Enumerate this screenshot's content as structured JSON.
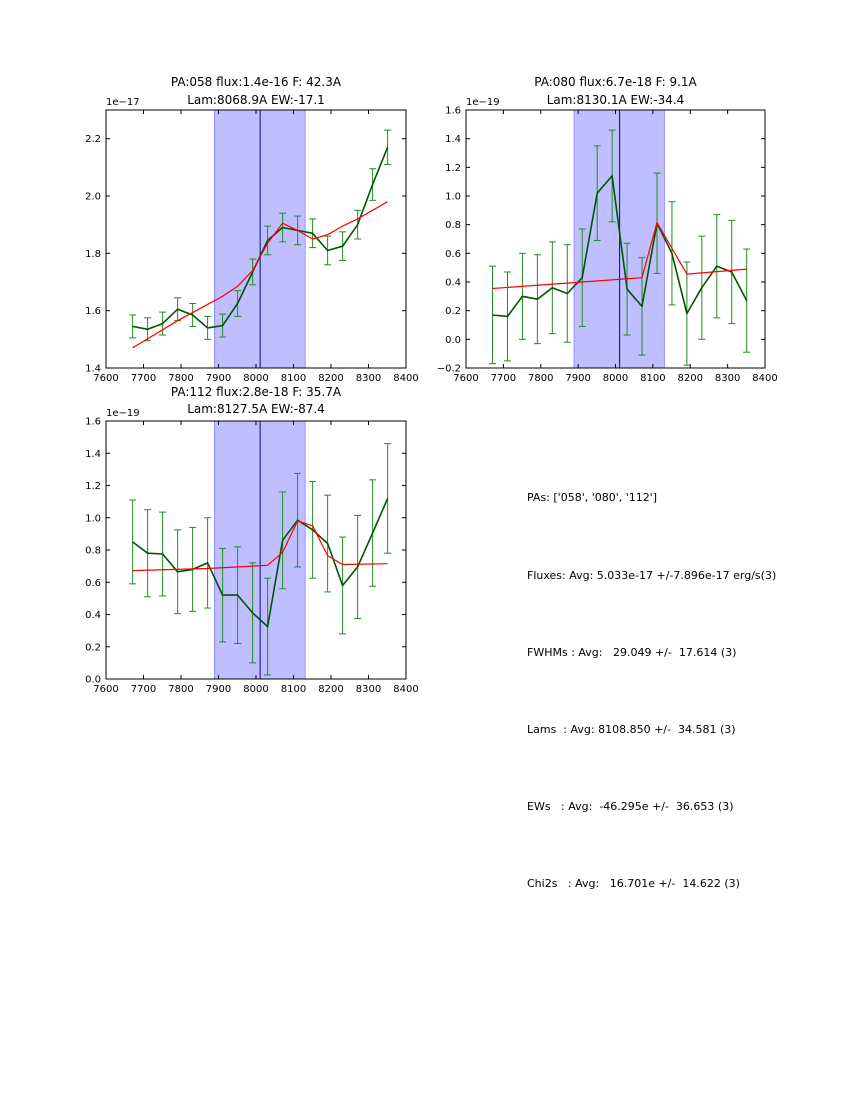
{
  "chart_data": [
    {
      "type": "line",
      "title_line1": "PA:058 flux:1.4e-16 F: 42.3A",
      "title_line2": "Lam:8068.9A EW:-17.1",
      "exponent_label": "1e−17",
      "xlim": [
        7600,
        8400
      ],
      "ylim": [
        1.4,
        2.3
      ],
      "xticks": [
        7600,
        7700,
        7800,
        7900,
        8000,
        8100,
        8200,
        8300,
        8400
      ],
      "yticks": [
        1.4,
        1.6,
        1.8,
        2.0,
        2.2
      ],
      "ytick_labels": [
        "1.4",
        "1.6",
        "1.8",
        "2.0",
        "2.2"
      ],
      "band": [
        7889,
        8131
      ],
      "center_line": 8011,
      "series": [
        {
          "name": "data",
          "color": "#005500",
          "x": [
            7671,
            7711,
            7751,
            7791,
            7831,
            7871,
            7911,
            7951,
            7991,
            8031,
            8071,
            8111,
            8151,
            8191,
            8231,
            8271,
            8311,
            8351
          ],
          "y": [
            1.545,
            1.535,
            1.555,
            1.605,
            1.585,
            1.54,
            1.548,
            1.625,
            1.735,
            1.845,
            1.89,
            1.88,
            1.87,
            1.81,
            1.825,
            1.9,
            2.04,
            2.17
          ],
          "err": [
            0.04,
            0.04,
            0.04,
            0.04,
            0.04,
            0.04,
            0.04,
            0.045,
            0.045,
            0.05,
            0.05,
            0.05,
            0.05,
            0.05,
            0.05,
            0.05,
            0.055,
            0.06
          ]
        },
        {
          "name": "model",
          "color": "#ff0000",
          "x": [
            7671,
            7791,
            7911,
            7951,
            7991,
            8031,
            8071,
            8111,
            8151,
            8191,
            8231,
            8271,
            8311,
            8351
          ],
          "y": [
            1.47,
            1.565,
            1.65,
            1.685,
            1.74,
            1.835,
            1.905,
            1.88,
            1.85,
            1.865,
            1.895,
            1.92,
            1.95,
            1.98
          ]
        }
      ]
    },
    {
      "type": "line",
      "title_line1": "PA:080 flux:6.7e-18 F: 9.1A",
      "title_line2": "Lam:8130.1A EW:-34.4",
      "exponent_label": "1e−19",
      "xlim": [
        7600,
        8400
      ],
      "ylim": [
        -0.2,
        1.6
      ],
      "xticks": [
        7600,
        7700,
        7800,
        7900,
        8000,
        8100,
        8200,
        8300,
        8400
      ],
      "yticks": [
        -0.2,
        0.0,
        0.2,
        0.4,
        0.6,
        0.8,
        1.0,
        1.2,
        1.4,
        1.6
      ],
      "ytick_labels": [
        "−0.2",
        "0.0",
        "0.2",
        "0.4",
        "0.6",
        "0.8",
        "1.0",
        "1.2",
        "1.4",
        "1.6"
      ],
      "band": [
        7889,
        8131
      ],
      "center_line": 8011,
      "series": [
        {
          "name": "data",
          "color": "#005500",
          "x": [
            7671,
            7711,
            7751,
            7791,
            7831,
            7871,
            7911,
            7951,
            7991,
            8031,
            8071,
            8111,
            8151,
            8191,
            8231,
            8271,
            8311,
            8351
          ],
          "y": [
            0.17,
            0.16,
            0.3,
            0.28,
            0.36,
            0.32,
            0.43,
            1.02,
            1.14,
            0.35,
            0.23,
            0.81,
            0.6,
            0.18,
            0.36,
            0.51,
            0.47,
            0.27
          ],
          "err": [
            0.34,
            0.31,
            0.3,
            0.31,
            0.32,
            0.34,
            0.34,
            0.33,
            0.32,
            0.32,
            0.34,
            0.35,
            0.36,
            0.36,
            0.36,
            0.36,
            0.36,
            0.36
          ]
        },
        {
          "name": "model",
          "color": "#ff0000",
          "x": [
            7671,
            8071,
            8111,
            8191,
            8351
          ],
          "y": [
            0.355,
            0.43,
            0.815,
            0.455,
            0.49
          ]
        }
      ]
    },
    {
      "type": "line",
      "title_line1": "PA:112 flux:2.8e-18 F: 35.7A",
      "title_line2": "Lam:8127.5A EW:-87.4",
      "exponent_label": "1e−19",
      "xlim": [
        7600,
        8400
      ],
      "ylim": [
        0.0,
        1.6
      ],
      "xticks": [
        7600,
        7700,
        7800,
        7900,
        8000,
        8100,
        8200,
        8300,
        8400
      ],
      "yticks": [
        0.0,
        0.2,
        0.4,
        0.6,
        0.8,
        1.0,
        1.2,
        1.4,
        1.6
      ],
      "ytick_labels": [
        "0.0",
        "0.2",
        "0.4",
        "0.6",
        "0.8",
        "1.0",
        "1.2",
        "1.4",
        "1.6"
      ],
      "band": [
        7889,
        8131
      ],
      "center_line": 8011,
      "series": [
        {
          "name": "data",
          "color": "#005500",
          "x": [
            7671,
            7711,
            7751,
            7791,
            7831,
            7871,
            7911,
            7951,
            7991,
            8031,
            8071,
            8111,
            8151,
            8191,
            8231,
            8271,
            8311,
            8351
          ],
          "y": [
            0.85,
            0.78,
            0.775,
            0.665,
            0.68,
            0.72,
            0.52,
            0.52,
            0.41,
            0.325,
            0.86,
            0.985,
            0.925,
            0.84,
            0.58,
            0.695,
            0.905,
            1.12
          ],
          "err": [
            0.26,
            0.27,
            0.26,
            0.26,
            0.26,
            0.28,
            0.29,
            0.3,
            0.31,
            0.3,
            0.3,
            0.29,
            0.3,
            0.3,
            0.3,
            0.32,
            0.33,
            0.34
          ]
        },
        {
          "name": "model",
          "color": "#ff0000",
          "x": [
            7671,
            7871,
            8031,
            8071,
            8111,
            8151,
            8191,
            8231,
            8351
          ],
          "y": [
            0.672,
            0.685,
            0.705,
            0.785,
            0.98,
            0.95,
            0.765,
            0.71,
            0.715
          ]
        }
      ]
    }
  ],
  "summary": {
    "pas": "PAs: ['058', '080', '112']",
    "fluxes": "Fluxes: Avg: 5.033e-17 +/-7.896e-17 erg/s(3)",
    "fwhms": "FWHMs : Avg:   29.049 +/-  17.614 (3)",
    "lams": "Lams  : Avg: 8108.850 +/-  34.581 (3)",
    "ews": "EWs   : Avg:  -46.295e +/-  36.653 (3)",
    "chi2s": "Chi2s   : Avg:   16.701e +/-  14.622 (3)"
  }
}
